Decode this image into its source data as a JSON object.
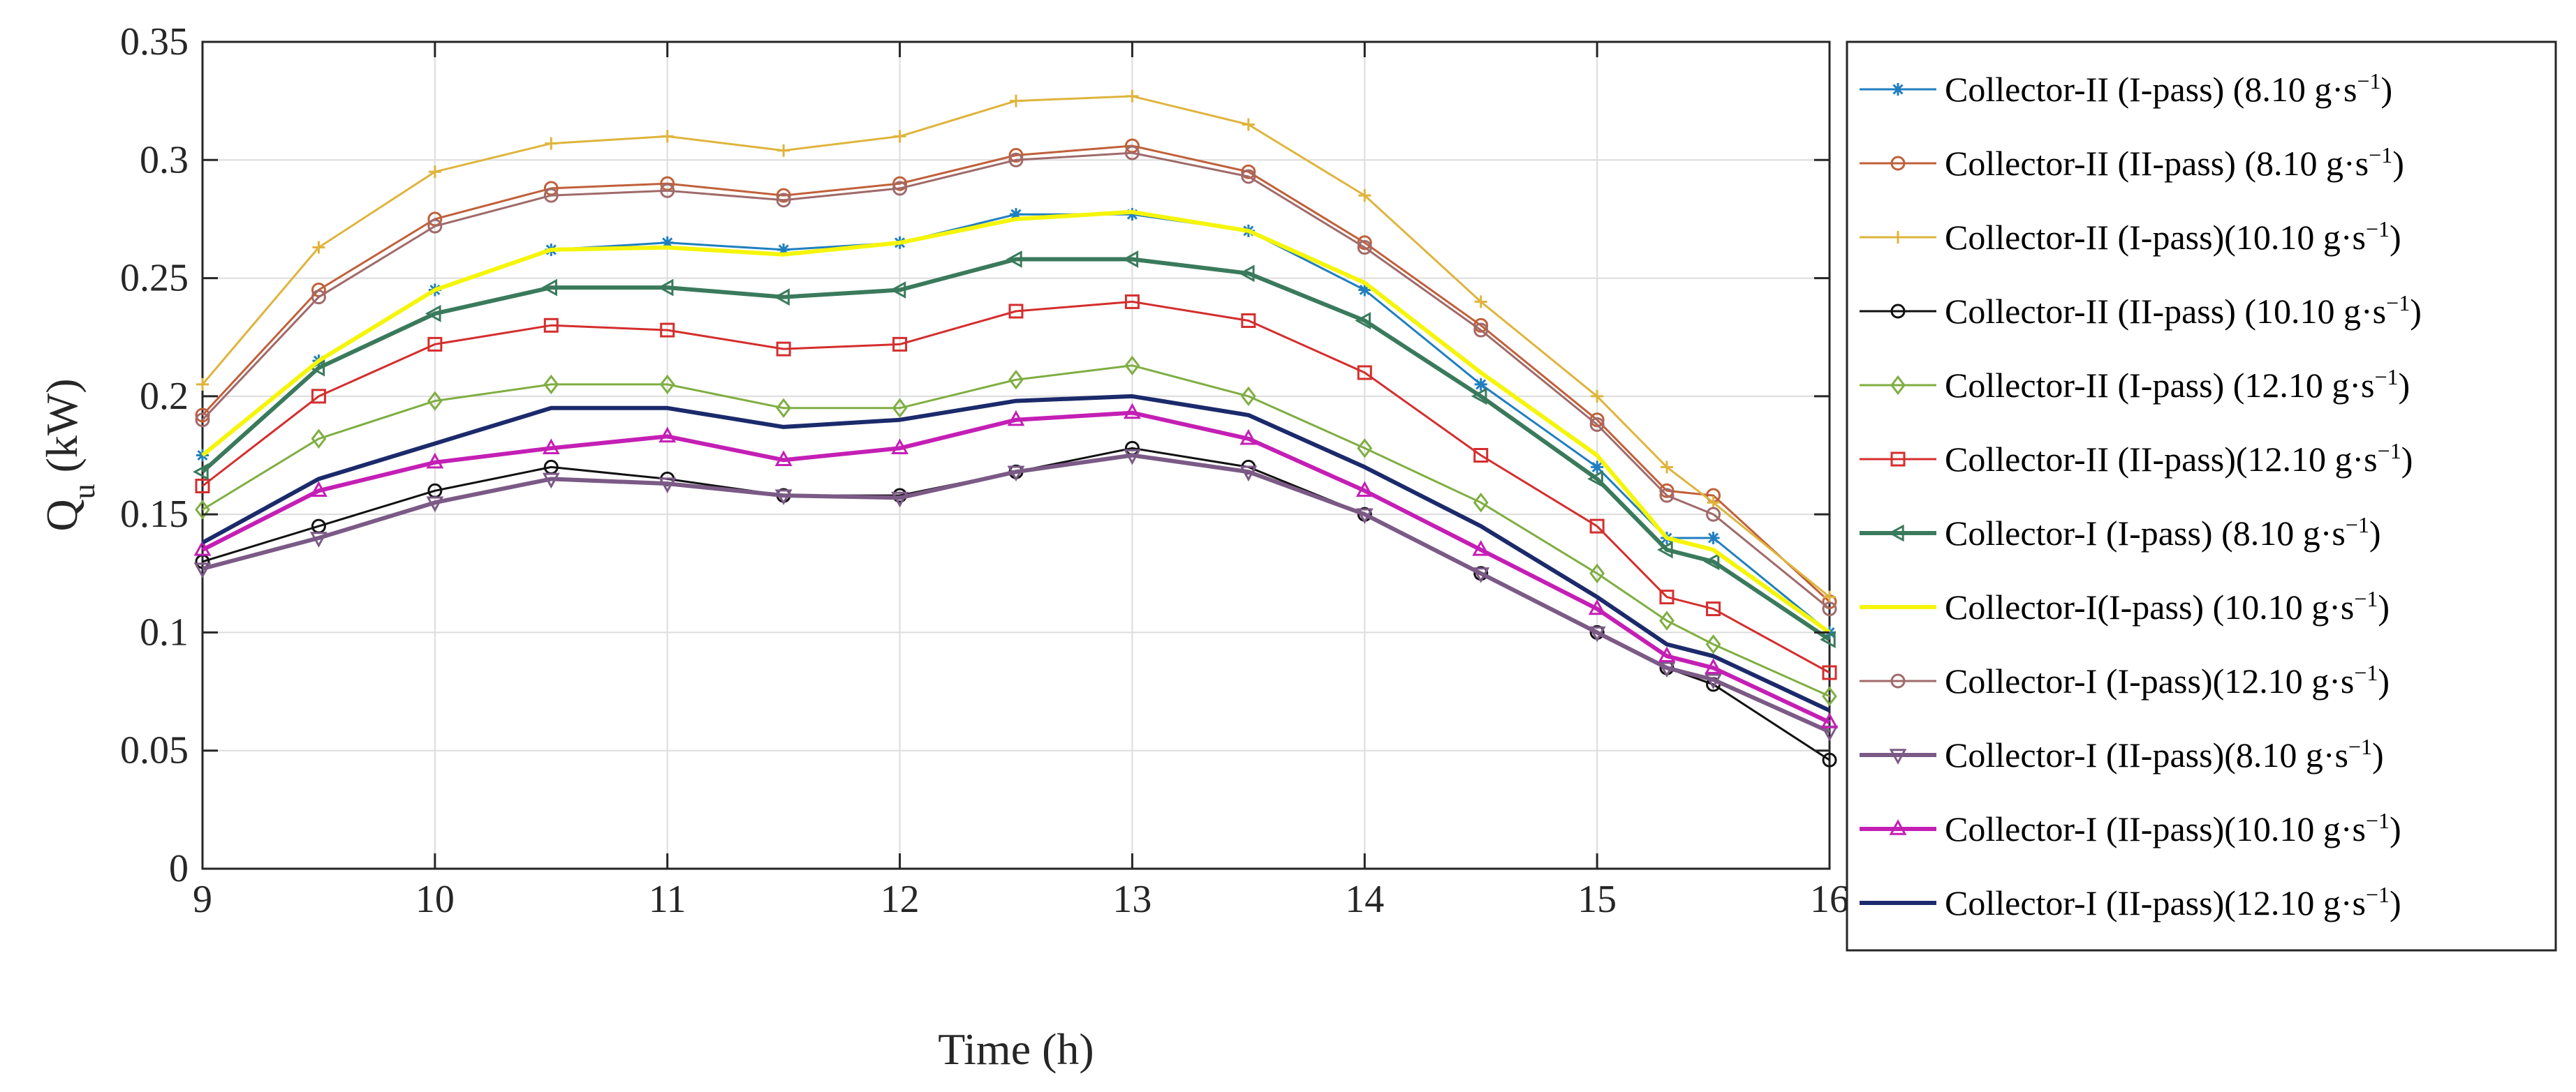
{
  "chart_data": {
    "type": "line",
    "title": "",
    "xlabel": "Time (h)",
    "ylabel": {
      "main": "Q",
      "sub": "u",
      "unit": "(kW)"
    },
    "xlim": [
      9,
      16
    ],
    "ylim": [
      0,
      0.35
    ],
    "xticks": [
      "9",
      "10",
      "11",
      "12",
      "13",
      "14",
      "15",
      "16"
    ],
    "yticks": [
      "0",
      "0.05",
      "0.1",
      "0.15",
      "0.2",
      "0.25",
      "0.3",
      "0.35"
    ],
    "grid": true,
    "legend_position": "right",
    "x": [
      9,
      9.5,
      10,
      10.5,
      11,
      11.5,
      12,
      12.5,
      13,
      13.5,
      14,
      14.5,
      15,
      15.3,
      15.5,
      16
    ],
    "series": [
      {
        "label_main": "Collector-II (I-pass) (8.10 g·s",
        "label_sup": "−1",
        "label_end": ")",
        "color": "#1f7fbf",
        "marker": "star",
        "width": 3,
        "values": [
          0.175,
          0.215,
          0.245,
          0.262,
          0.265,
          0.262,
          0.265,
          0.277,
          0.277,
          0.27,
          0.245,
          0.205,
          0.17,
          0.14,
          0.14,
          0.1
        ]
      },
      {
        "label_main": "Collector-II (II-pass) (8.10 g·s",
        "label_sup": "−1",
        "label_end": ")",
        "color": "#c0603a",
        "marker": "circle",
        "width": 3,
        "values": [
          0.192,
          0.245,
          0.275,
          0.288,
          0.29,
          0.285,
          0.29,
          0.302,
          0.306,
          0.295,
          0.265,
          0.23,
          0.19,
          0.16,
          0.158,
          0.113
        ]
      },
      {
        "label_main": "Collector-II (I-pass)(10.10 g·s",
        "label_sup": "−1",
        "label_end": ")",
        "color": "#dfb43c",
        "marker": "plus",
        "width": 3,
        "values": [
          0.205,
          0.263,
          0.295,
          0.307,
          0.31,
          0.304,
          0.31,
          0.325,
          0.327,
          0.315,
          0.285,
          0.24,
          0.2,
          0.17,
          0.155,
          0.115
        ]
      },
      {
        "label_main": "Collector-II (II-pass) (10.10 g·s",
        "label_sup": "−1",
        "label_end": ")",
        "color": "#111111",
        "marker": "circle",
        "width": 3,
        "values": [
          0.13,
          0.145,
          0.16,
          0.17,
          0.165,
          0.158,
          0.158,
          0.168,
          0.178,
          0.17,
          0.15,
          0.125,
          0.1,
          0.085,
          0.078,
          0.046
        ]
      },
      {
        "label_main": "Collector-II (I-pass) (12.10 g·s",
        "label_sup": "−1",
        "label_end": ")",
        "color": "#7fae42",
        "marker": "diamond",
        "width": 3,
        "values": [
          0.152,
          0.182,
          0.198,
          0.205,
          0.205,
          0.195,
          0.195,
          0.207,
          0.213,
          0.2,
          0.178,
          0.155,
          0.125,
          0.105,
          0.095,
          0.073
        ]
      },
      {
        "label_main": "Collector-II (II-pass)(12.10 g·s",
        "label_sup": "−1",
        "label_end": ")",
        "color": "#d42e2e",
        "marker": "square",
        "width": 3,
        "values": [
          0.162,
          0.2,
          0.222,
          0.23,
          0.228,
          0.22,
          0.222,
          0.236,
          0.24,
          0.232,
          0.21,
          0.175,
          0.145,
          0.115,
          0.11,
          0.083
        ]
      },
      {
        "label_main": "Collector-I (I-pass) (8.10 g·s",
        "label_sup": "−1",
        "label_end": ")",
        "color": "#3a7a5c",
        "marker": "triangle-left",
        "width": 6,
        "values": [
          0.168,
          0.212,
          0.235,
          0.246,
          0.246,
          0.242,
          0.245,
          0.258,
          0.258,
          0.252,
          0.232,
          0.2,
          0.165,
          0.135,
          0.13,
          0.097
        ]
      },
      {
        "label_main": "Collector-I(I-pass) (10.10 g·s",
        "label_sup": "−1",
        "label_end": ")",
        "color": "#f5f50a",
        "marker": "none",
        "width": 6,
        "values": [
          0.175,
          0.215,
          0.245,
          0.262,
          0.263,
          0.26,
          0.265,
          0.275,
          0.278,
          0.27,
          0.248,
          0.21,
          0.175,
          0.14,
          0.135,
          0.1
        ]
      },
      {
        "label_main": "Collector-I (I-pass)(12.10 g·s",
        "label_sup": "−1",
        "label_end": ")",
        "color": "#a06a6a",
        "marker": "circle",
        "width": 3,
        "values": [
          0.19,
          0.242,
          0.272,
          0.285,
          0.287,
          0.283,
          0.288,
          0.3,
          0.303,
          0.293,
          0.263,
          0.228,
          0.188,
          0.158,
          0.15,
          0.11
        ]
      },
      {
        "label_main": "Collector-I (II-pass)(8.10 g·s",
        "label_sup": "−1",
        "label_end": ")",
        "color": "#7b5a86",
        "marker": "triangle-down",
        "width": 6,
        "values": [
          0.127,
          0.14,
          0.155,
          0.165,
          0.163,
          0.158,
          0.157,
          0.168,
          0.175,
          0.168,
          0.15,
          0.125,
          0.1,
          0.085,
          0.08,
          0.058
        ]
      },
      {
        "label_main": "Collector-I (II-pass)(10.10 g·s",
        "label_sup": "−1",
        "label_end": ")",
        "color": "#c41fb5",
        "marker": "triangle-up",
        "width": 6,
        "values": [
          0.135,
          0.16,
          0.172,
          0.178,
          0.183,
          0.173,
          0.178,
          0.19,
          0.193,
          0.182,
          0.16,
          0.135,
          0.11,
          0.09,
          0.085,
          0.062
        ]
      },
      {
        "label_main": "Collector-I (II-pass)(12.10 g·s",
        "label_sup": "−1",
        "label_end": ")",
        "color": "#1b2a6b",
        "marker": "none",
        "width": 6,
        "values": [
          0.138,
          0.165,
          0.18,
          0.195,
          0.195,
          0.187,
          0.19,
          0.198,
          0.2,
          0.192,
          0.17,
          0.145,
          0.115,
          0.095,
          0.09,
          0.067
        ]
      }
    ]
  }
}
